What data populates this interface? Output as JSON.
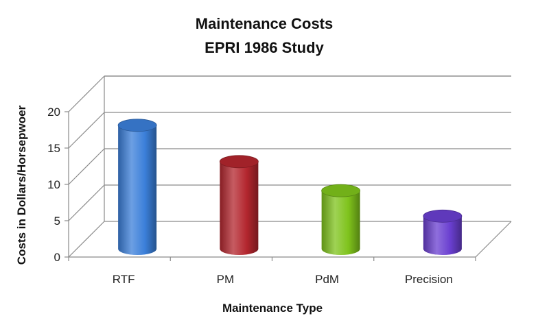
{
  "chart_data": {
    "type": "bar",
    "title": "Maintenance Costs",
    "subtitle": "EPRI 1986 Study",
    "xlabel": "Maintenance Type",
    "ylabel": "Costs in Dollars/Horsepwoer",
    "categories": [
      "RTF",
      "PM",
      "PdM",
      "Precision"
    ],
    "values": [
      17,
      12,
      8,
      4.5
    ],
    "ylim": [
      0,
      20
    ],
    "yticks": [
      "0",
      "5",
      "10",
      "15",
      "20"
    ],
    "grid": true,
    "legend": "none",
    "bar_style": "3d-cylinder",
    "colors": [
      "#3b7fd9",
      "#b3262e",
      "#7fc31c",
      "#6a3fd0"
    ]
  }
}
